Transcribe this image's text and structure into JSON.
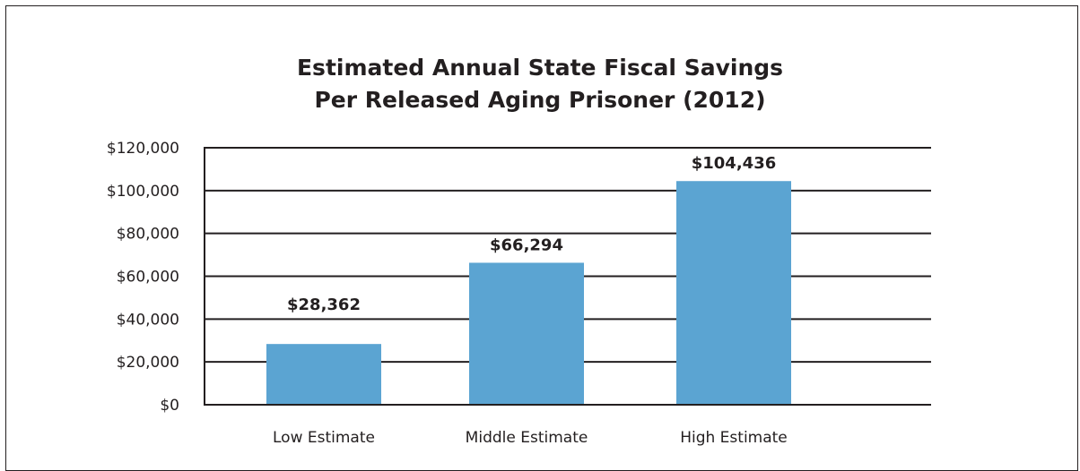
{
  "chart_data": {
    "type": "bar",
    "title_lines": [
      "Estimated Annual State Fiscal Savings",
      "Per Released Aging Prisoner (2012)"
    ],
    "xlabel": "",
    "ylabel": "",
    "categories": [
      "Low Estimate",
      "Middle Estimate",
      "High Estimate"
    ],
    "values": [
      28362,
      66294,
      104436
    ],
    "data_labels": [
      "$28,362",
      "$66,294",
      "$104,436"
    ],
    "ylim": [
      0,
      120000
    ],
    "y_ticks": [
      0,
      20000,
      40000,
      60000,
      80000,
      100000,
      120000
    ],
    "y_tick_labels": [
      "$0",
      "$20,000",
      "$40,000",
      "$60,000",
      "$80,000",
      "$100,000",
      "$120,000"
    ],
    "grid": true,
    "legend": "none",
    "colors": {
      "bar": "#5ba4d2",
      "axis": "#231f20",
      "text": "#231f20"
    }
  }
}
